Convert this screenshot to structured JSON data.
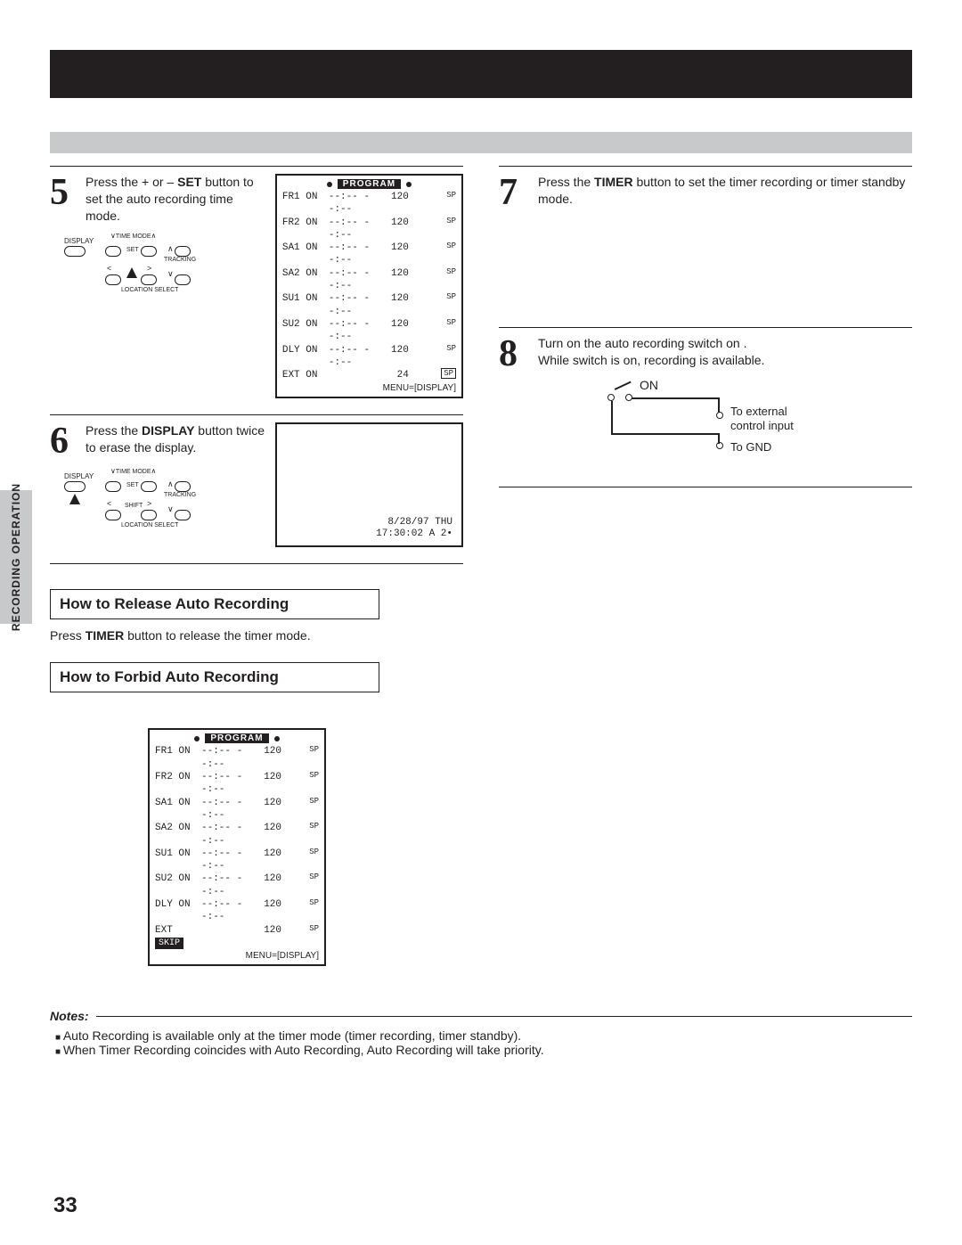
{
  "steps": {
    "s5": {
      "num": "5",
      "text_a": "Press the + or – ",
      "bold": "SET",
      "text_b": " button to set the auto recording time mode."
    },
    "s6": {
      "num": "6",
      "text_a": "Press the ",
      "bold": "DISPLAY",
      "text_b": " button twice to erase the display."
    },
    "s7": {
      "num": "7",
      "text_a": "Press the ",
      "bold": "TIMER",
      "text_b": " button to set the timer recording or timer standby mode."
    },
    "s8": {
      "num": "8",
      "line1": "Turn on the auto recording switch on .",
      "line2": "While switch is on, recording is available."
    }
  },
  "remote": {
    "display_label": "DISPLAY",
    "time_mode_label": "TIME MODE",
    "set_label": "SET",
    "tracking_label": "TRACKING",
    "shift_label": "SHIFT",
    "location_label": "LOCATION SELECT"
  },
  "program_box": {
    "title": "PROGRAM",
    "rows": [
      {
        "c1": "FR1 ON",
        "c2": "--:--  --:--",
        "c3": "120",
        "c4": "SP"
      },
      {
        "c1": "FR2 ON",
        "c2": "--:--  --:--",
        "c3": "120",
        "c4": "SP"
      },
      {
        "c1": "SA1 ON",
        "c2": "--:--  --:--",
        "c3": "120",
        "c4": "SP"
      },
      {
        "c1": "SA2 ON",
        "c2": "--:--  --:--",
        "c3": "120",
        "c4": "SP"
      },
      {
        "c1": "SU1 ON",
        "c2": "--:--  --:--",
        "c3": "120",
        "c4": "SP"
      },
      {
        "c1": "SU2 ON",
        "c2": "--:--  --:--",
        "c3": "120",
        "c4": "SP"
      },
      {
        "c1": "DLY ON",
        "c2": "--:--  --:--",
        "c3": "120",
        "c4": "SP"
      }
    ],
    "ext_row_a": {
      "c1": "EXT ON",
      "c3": "24",
      "sp_boxed": true
    },
    "footer": "MENU=[DISPLAY]"
  },
  "program_box_forbid": {
    "title": "PROGRAM",
    "rows": [
      {
        "c1": "FR1 ON",
        "c2": "--:--  --:--",
        "c3": "120",
        "c4": "SP"
      },
      {
        "c1": "FR2 ON",
        "c2": "--:--  --:--",
        "c3": "120",
        "c4": "SP"
      },
      {
        "c1": "SA1 ON",
        "c2": "--:--  --:--",
        "c3": "120",
        "c4": "SP"
      },
      {
        "c1": "SA2 ON",
        "c2": "--:--  --:--",
        "c3": "120",
        "c4": "SP"
      },
      {
        "c1": "SU1 ON",
        "c2": "--:--  --:--",
        "c3": "120",
        "c4": "SP"
      },
      {
        "c1": "SU2 ON",
        "c2": "--:--  --:--",
        "c3": "120",
        "c4": "SP"
      },
      {
        "c1": "DLY ON",
        "c2": "--:--  --:--",
        "c3": "120",
        "c4": "SP"
      }
    ],
    "ext_row": {
      "c1": "EXT",
      "skip": "SKIP",
      "c3": "120",
      "c4": "SP"
    },
    "footer": "MENU=[DISPLAY]"
  },
  "display_snapshot": {
    "date": "8/28/97 THU",
    "time": "17:30:02  A 2•"
  },
  "switch_diagram": {
    "on": "ON",
    "ext": "To external control input",
    "gnd": "To GND"
  },
  "sections": {
    "release_title": "How to Release Auto Recording",
    "release_text_a": "Press ",
    "release_bold": "TIMER",
    "release_text_b": " button to release the timer mode.",
    "forbid_title": "How to Forbid Auto Recording"
  },
  "notes": {
    "label": "Notes:",
    "items": [
      "Auto Recording is available only at the timer mode (timer recording, timer standby).",
      "When Timer Recording coincides with Auto Recording, Auto Recording will take priority."
    ]
  },
  "side_tab": "RECORDING OPERATION",
  "page_number": "33"
}
